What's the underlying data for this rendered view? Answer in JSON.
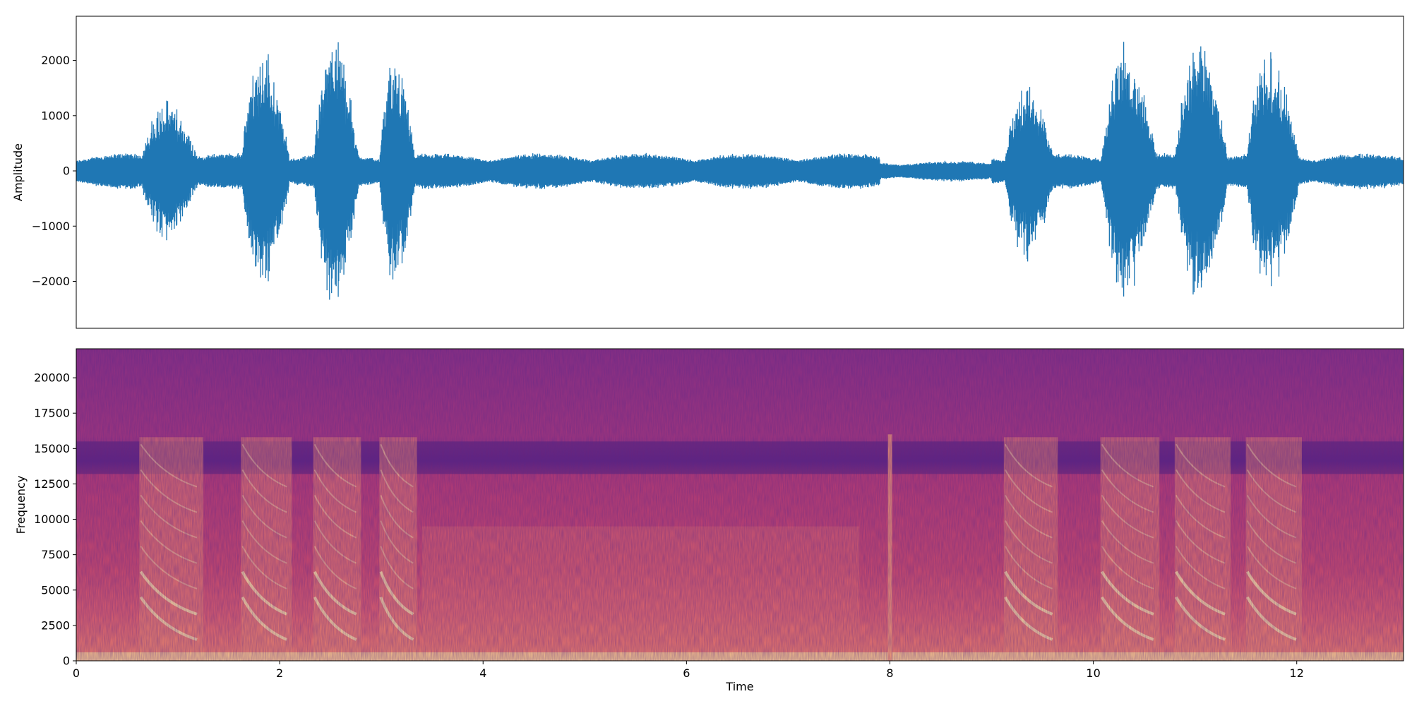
{
  "chart_data": [
    {
      "type": "line",
      "title": "",
      "xlabel": "",
      "ylabel": "Amplitude",
      "xlim": [
        0,
        13.05
      ],
      "ylim": [
        -2850,
        2800
      ],
      "x_ticks_visible": false,
      "y_ticks": [
        2000,
        1000,
        0,
        -1000,
        -2000
      ],
      "y_tick_labels": [
        "2000",
        "1000",
        "0",
        "−1000",
        "−2000"
      ],
      "grid": false,
      "series": [
        {
          "color": "#1f77b4",
          "description_bursts": [
            {
              "start": 0.62,
              "end": 1.25,
              "peak": 1300
            },
            {
              "start": 1.62,
              "end": 2.12,
              "peak": 2250
            },
            {
              "start": 2.33,
              "end": 2.8,
              "peak": 2550
            },
            {
              "start": 2.98,
              "end": 3.35,
              "peak": 2150
            },
            {
              "start": 9.12,
              "end": 9.65,
              "peak": 1650
            },
            {
              "start": 10.07,
              "end": 10.65,
              "peak": 2400
            },
            {
              "start": 10.8,
              "end": 11.35,
              "peak": 2450
            },
            {
              "start": 11.5,
              "end": 12.05,
              "peak": 2250
            }
          ],
          "baseline_noise": 320
        }
      ]
    },
    {
      "type": "heatmap",
      "title": "",
      "xlabel": "Time",
      "ylabel": "Frequency",
      "xlim": [
        0,
        13.05
      ],
      "ylim": [
        0,
        22050
      ],
      "x_ticks": [
        0,
        2,
        4,
        6,
        8,
        10,
        12
      ],
      "x_tick_labels": [
        "0",
        "2",
        "4",
        "6",
        "8",
        "10",
        "12"
      ],
      "y_ticks": [
        0,
        2500,
        5000,
        7500,
        10000,
        12500,
        15000,
        17500,
        20000
      ],
      "y_tick_labels": [
        "0",
        "2500",
        "5000",
        "7500",
        "10000",
        "12500",
        "15000",
        "17500",
        "20000"
      ],
      "colormap": "magma",
      "colors": {
        "low": "#4b1d7a",
        "mid": "#b9386e",
        "high": "#fde2a0"
      }
    }
  ]
}
